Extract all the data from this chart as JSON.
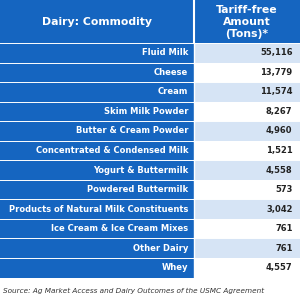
{
  "header_col1": "Dairy: Commodity",
  "header_col2": "Tariff-free\nAmount\n(Tons)*",
  "rows": [
    [
      "Fluid Milk",
      "55,116"
    ],
    [
      "Cheese",
      "13,779"
    ],
    [
      "Cream",
      "11,574"
    ],
    [
      "Skim Milk Powder",
      "8,267"
    ],
    [
      "Butter & Cream Powder",
      "4,960"
    ],
    [
      "Concentrated & Condensed Milk",
      "1,521"
    ],
    [
      "Yogurt & Buttermilk",
      "4,558"
    ],
    [
      "Powdered Buttermilk",
      "573"
    ],
    [
      "Products of Natural Milk Constituents",
      "3,042"
    ],
    [
      "Ice Cream & Ice Cream Mixes",
      "761"
    ],
    [
      "Other Dairy",
      "761"
    ],
    [
      "Whey",
      "4,557"
    ]
  ],
  "source_text": "Source: Ag Market Access and Dairy Outcomes of the USMC Agreement",
  "header_bg": "#1565C0",
  "header_text_color": "#FFFFFF",
  "col1_bg": "#1565C0",
  "col1_text": "#FFFFFF",
  "col2_bg_odd": "#D6E4F5",
  "col2_bg_even": "#FFFFFF",
  "col2_text": "#222222",
  "row_divider_color": "#FFFFFF",
  "col_divider_color": "#FFFFFF",
  "figure_bg": "#FFFFFF",
  "source_fontsize": 5.2,
  "header_fontsize": 7.8,
  "row_fontsize": 6.0,
  "col_split": 0.645
}
